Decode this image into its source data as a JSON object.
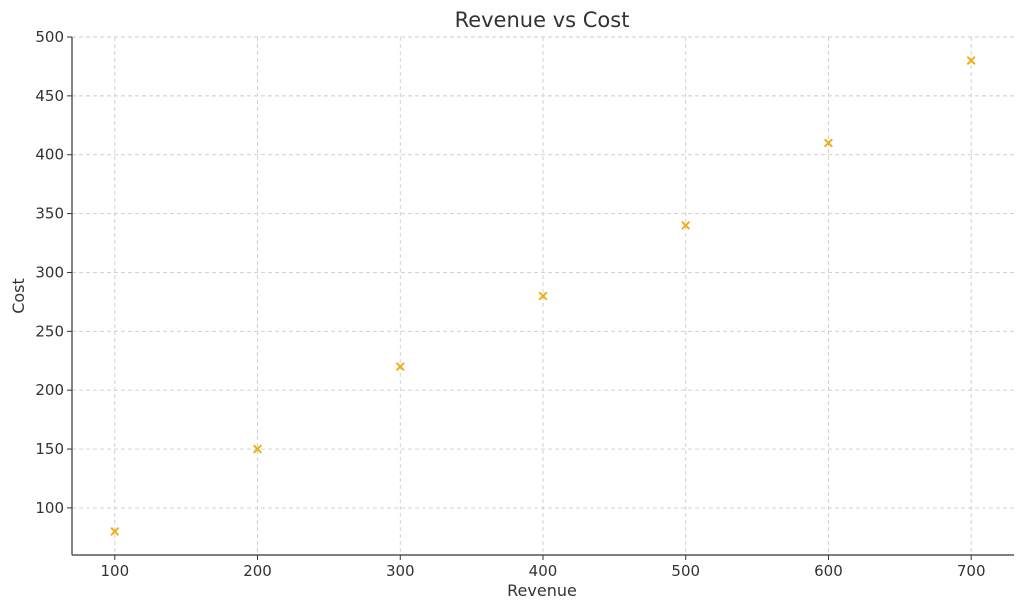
{
  "chart_data": {
    "type": "scatter",
    "title": "Revenue vs Cost",
    "xlabel": "Revenue",
    "ylabel": "Cost",
    "x": [
      100,
      200,
      300,
      400,
      500,
      600,
      700
    ],
    "y": [
      80,
      150,
      220,
      280,
      340,
      410,
      480
    ],
    "xlim": [
      70,
      730
    ],
    "ylim": [
      60,
      500
    ],
    "xticks": [
      100,
      200,
      300,
      400,
      500,
      600,
      700
    ],
    "yticks": [
      100,
      150,
      200,
      250,
      300,
      350,
      400,
      450,
      500
    ],
    "marker": "x",
    "marker_color": "#f0ad1a",
    "grid": true
  }
}
